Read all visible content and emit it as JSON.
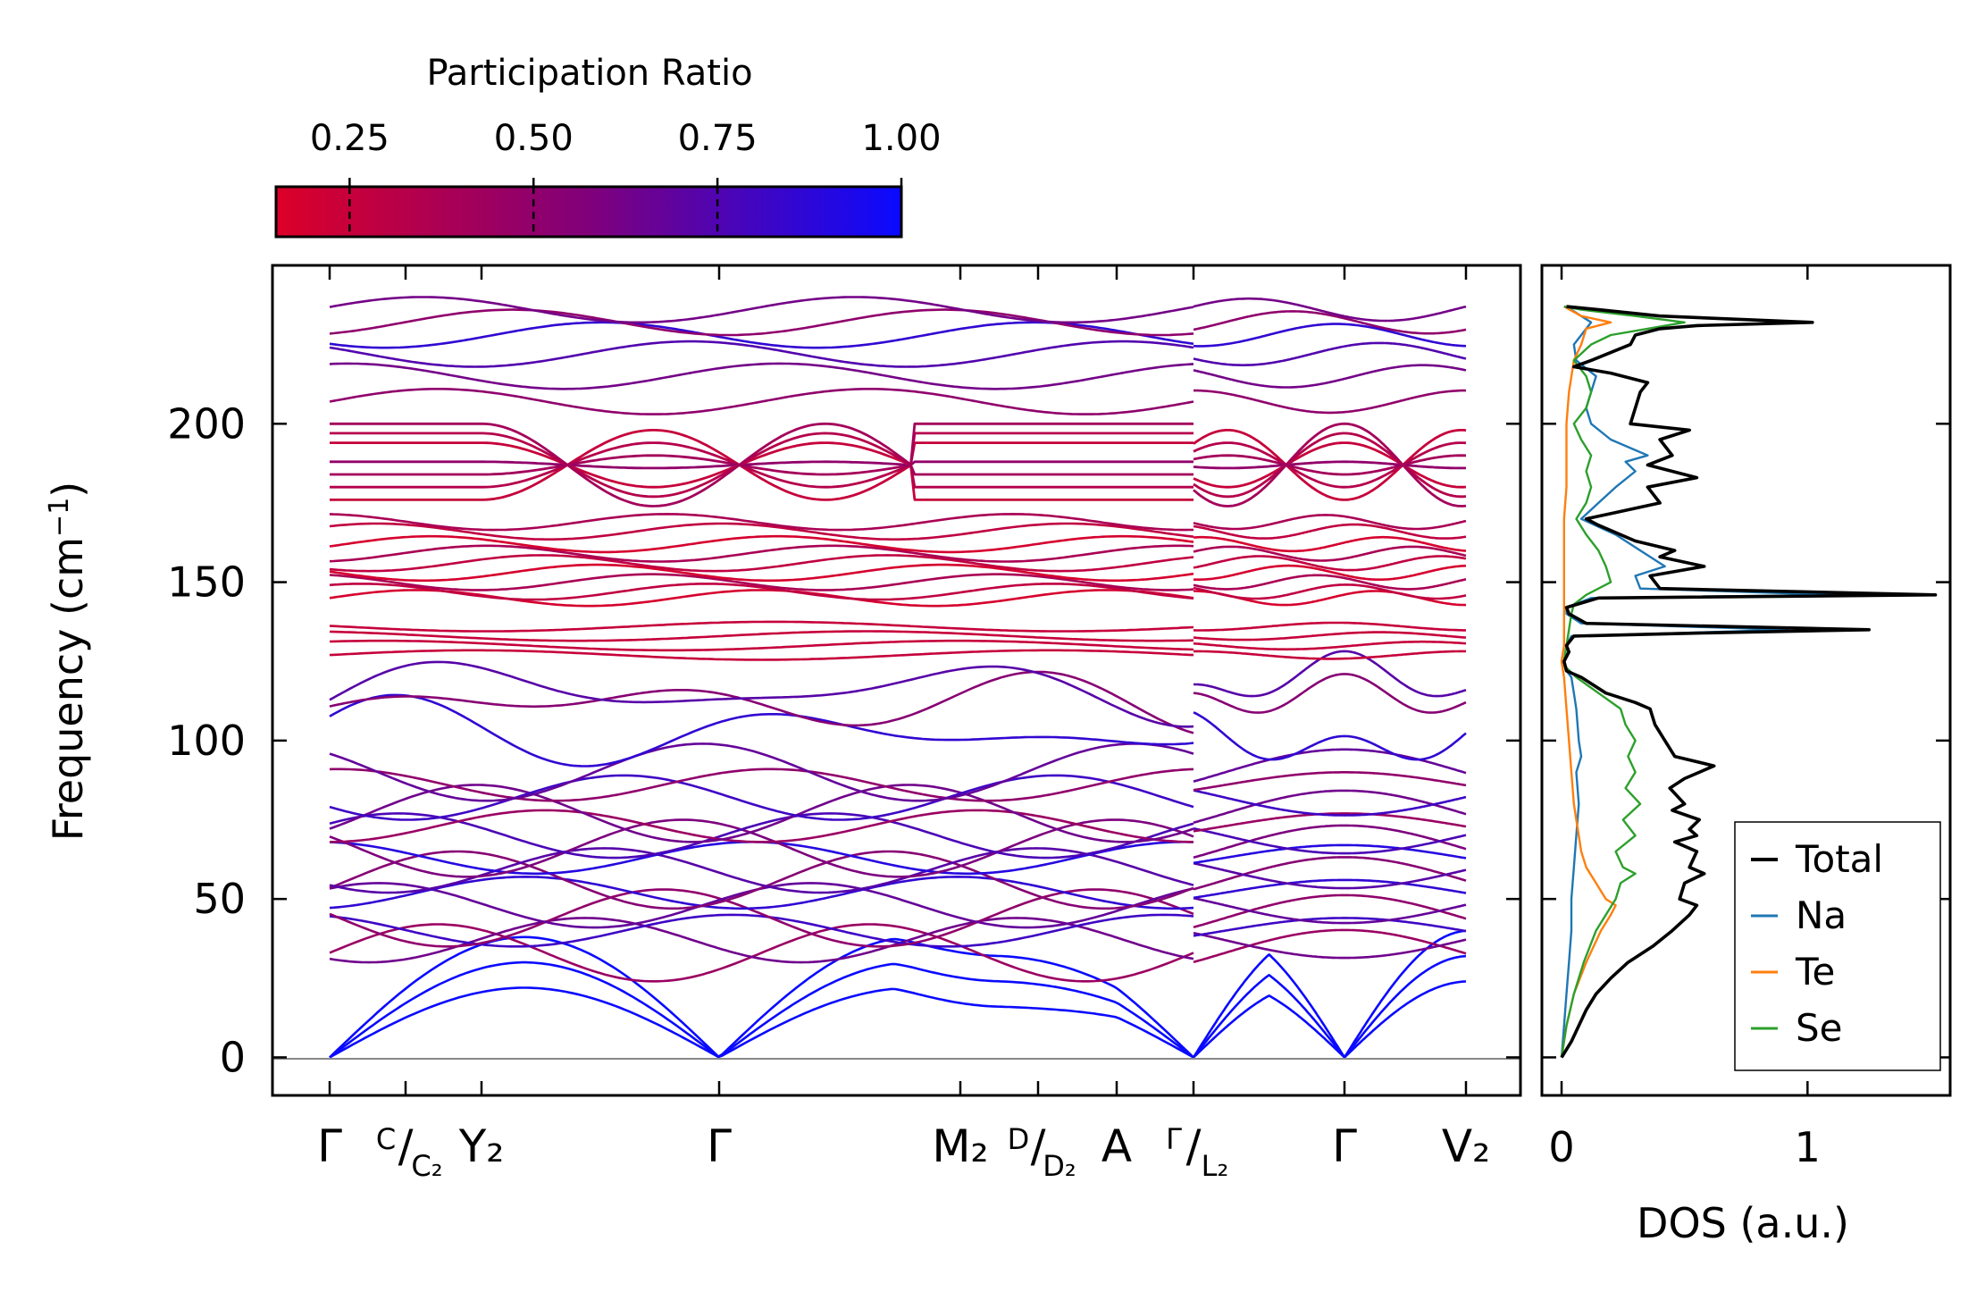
{
  "chart_data": [
    {
      "type": "line",
      "title": "",
      "xlabel": "",
      "ylabel_main": "Frequency (cm",
      "ylabel_sup": "−1",
      "ylabel_tail": ")",
      "ylim": [
        -12,
        250
      ],
      "yticks": [
        0,
        50,
        100,
        150,
        200
      ],
      "color_map": {
        "label": "Participation Ratio",
        "range": [
          0.15,
          1.0
        ],
        "ticks": [
          "0.25",
          "0.50",
          "0.75",
          "1.00"
        ],
        "tick_values": [
          0.25,
          0.5,
          0.75,
          1.0
        ],
        "low_color": "#dc0028",
        "mid_color": "#80007a",
        "high_color": "#0a0aff"
      },
      "k_path_labels": [
        {
          "main": "Γ",
          "sup": "",
          "sub": ""
        },
        {
          "main": "/",
          "sup": "C",
          "sub": "C₂"
        },
        {
          "main": "Y₂",
          "sup": "",
          "sub": ""
        },
        {
          "main": "Γ",
          "sup": "",
          "sub": ""
        },
        {
          "main": "M₂",
          "sup": "",
          "sub": ""
        },
        {
          "main": "/",
          "sup": "D",
          "sub": "D₂"
        },
        {
          "main": "A",
          "sup": "",
          "sub": ""
        },
        {
          "main": "/",
          "sup": "Γ",
          "sub": "L₂"
        },
        {
          "main": "Γ",
          "sup": "",
          "sub": ""
        },
        {
          "main": "V₂",
          "sup": "",
          "sub": ""
        }
      ],
      "segments": [
        {
          "name": "Γ–C–Y₂–Γ–M₂–D–A–Γ",
          "k_length": 1.0
        },
        {
          "name": "L₂–Γ–V₂",
          "k_length": 0.3
        }
      ],
      "band_summary_cm1": {
        "acoustic_branches": 3,
        "acoustic_max_at_zone_edge": 38,
        "low_optical_range": [
          20,
          120
        ],
        "mid_optical_range": [
          127,
          137
        ],
        "high_optical_range": [
          143,
          200
        ],
        "top_band_max": 237
      }
    },
    {
      "type": "line",
      "title": "",
      "xlabel": "DOS (a.u.)",
      "xticks": [
        0,
        1
      ],
      "xlim": [
        -0.08,
        1.58
      ],
      "ylim": [
        -12,
        250
      ],
      "legend_position": "lower-right",
      "series": [
        {
          "name": "Total",
          "color": "#000000",
          "frequency": [
            0,
            5,
            10,
            15,
            20,
            25,
            30,
            35,
            40,
            45,
            48,
            50,
            55,
            58,
            60,
            65,
            68,
            70,
            72,
            75,
            78,
            80,
            85,
            88,
            92,
            95,
            100,
            105,
            110,
            112,
            115,
            120,
            122,
            125,
            128,
            130,
            133,
            134,
            135,
            137,
            140,
            142,
            145,
            146,
            148,
            152,
            155,
            158,
            160,
            163,
            168,
            170,
            172,
            175,
            180,
            183,
            187,
            190,
            195,
            198,
            200,
            205,
            210,
            213,
            216,
            218,
            220,
            225,
            228,
            230,
            231,
            232,
            234,
            236,
            237
          ],
          "values": [
            0,
            0.04,
            0.07,
            0.1,
            0.14,
            0.2,
            0.27,
            0.37,
            0.45,
            0.52,
            0.55,
            0.48,
            0.5,
            0.58,
            0.52,
            0.55,
            0.46,
            0.55,
            0.52,
            0.56,
            0.45,
            0.5,
            0.44,
            0.5,
            0.62,
            0.46,
            0.42,
            0.38,
            0.36,
            0.3,
            0.18,
            0.08,
            0.02,
            0.01,
            0.03,
            0.02,
            0.05,
            0.6,
            1.25,
            0.1,
            0.03,
            0.02,
            0.15,
            1.52,
            0.4,
            0.36,
            0.58,
            0.4,
            0.46,
            0.3,
            0.15,
            0.1,
            0.22,
            0.4,
            0.35,
            0.55,
            0.35,
            0.45,
            0.4,
            0.52,
            0.28,
            0.3,
            0.32,
            0.35,
            0.2,
            0.05,
            0.12,
            0.28,
            0.3,
            0.4,
            0.55,
            1.02,
            0.4,
            0.15,
            0.02
          ]
        },
        {
          "name": "Na",
          "color": "#1f77b4",
          "frequency": [
            0,
            10,
            20,
            30,
            40,
            50,
            60,
            70,
            80,
            90,
            95,
            100,
            110,
            115,
            120,
            122,
            125,
            130,
            133,
            134,
            135,
            137,
            140,
            142,
            145,
            146,
            148,
            152,
            155,
            160,
            165,
            170,
            175,
            180,
            185,
            188,
            190,
            195,
            200,
            205,
            210,
            215,
            220,
            225,
            230,
            232,
            234,
            236,
            237
          ],
          "values": [
            0,
            0.01,
            0.02,
            0.03,
            0.04,
            0.04,
            0.05,
            0.06,
            0.07,
            0.06,
            0.08,
            0.07,
            0.06,
            0.05,
            0.04,
            0.02,
            0.01,
            0.02,
            0.04,
            0.5,
            0.92,
            0.08,
            0.02,
            0.02,
            0.12,
            1.12,
            0.32,
            0.3,
            0.42,
            0.32,
            0.22,
            0.08,
            0.15,
            0.22,
            0.3,
            0.26,
            0.35,
            0.2,
            0.12,
            0.1,
            0.12,
            0.14,
            0.06,
            0.05,
            0.1,
            0.12,
            0.08,
            0.04,
            0.01
          ]
        },
        {
          "name": "Te",
          "color": "#ff7f0e",
          "frequency": [
            0,
            10,
            20,
            30,
            40,
            45,
            48,
            50,
            55,
            60,
            65,
            70,
            75,
            80,
            90,
            100,
            110,
            120,
            125,
            130,
            140,
            150,
            160,
            170,
            180,
            190,
            200,
            210,
            220,
            225,
            230,
            232,
            234,
            237
          ],
          "values": [
            0,
            0.02,
            0.05,
            0.1,
            0.16,
            0.2,
            0.22,
            0.18,
            0.14,
            0.1,
            0.08,
            0.07,
            0.06,
            0.05,
            0.04,
            0.03,
            0.02,
            0.01,
            0.0,
            0.01,
            0.01,
            0.01,
            0.01,
            0.01,
            0.02,
            0.02,
            0.02,
            0.03,
            0.05,
            0.08,
            0.1,
            0.2,
            0.08,
            0.01
          ]
        },
        {
          "name": "Se",
          "color": "#2ca02c",
          "frequency": [
            0,
            10,
            20,
            30,
            40,
            45,
            50,
            55,
            58,
            60,
            65,
            70,
            75,
            80,
            85,
            90,
            95,
            100,
            105,
            110,
            115,
            120,
            123,
            125,
            130,
            135,
            140,
            143,
            146,
            150,
            155,
            160,
            165,
            170,
            175,
            180,
            185,
            190,
            195,
            200,
            205,
            210,
            215,
            220,
            225,
            228,
            230,
            232,
            234,
            236,
            237
          ],
          "values": [
            0,
            0.02,
            0.05,
            0.09,
            0.14,
            0.18,
            0.22,
            0.24,
            0.3,
            0.25,
            0.22,
            0.3,
            0.25,
            0.32,
            0.26,
            0.3,
            0.27,
            0.3,
            0.26,
            0.24,
            0.15,
            0.06,
            0.02,
            0.01,
            0.02,
            0.03,
            0.04,
            0.05,
            0.1,
            0.2,
            0.18,
            0.15,
            0.1,
            0.06,
            0.1,
            0.12,
            0.1,
            0.12,
            0.08,
            0.05,
            0.1,
            0.12,
            0.1,
            0.05,
            0.12,
            0.2,
            0.35,
            0.5,
            0.3,
            0.08,
            0.01
          ]
        }
      ]
    }
  ]
}
